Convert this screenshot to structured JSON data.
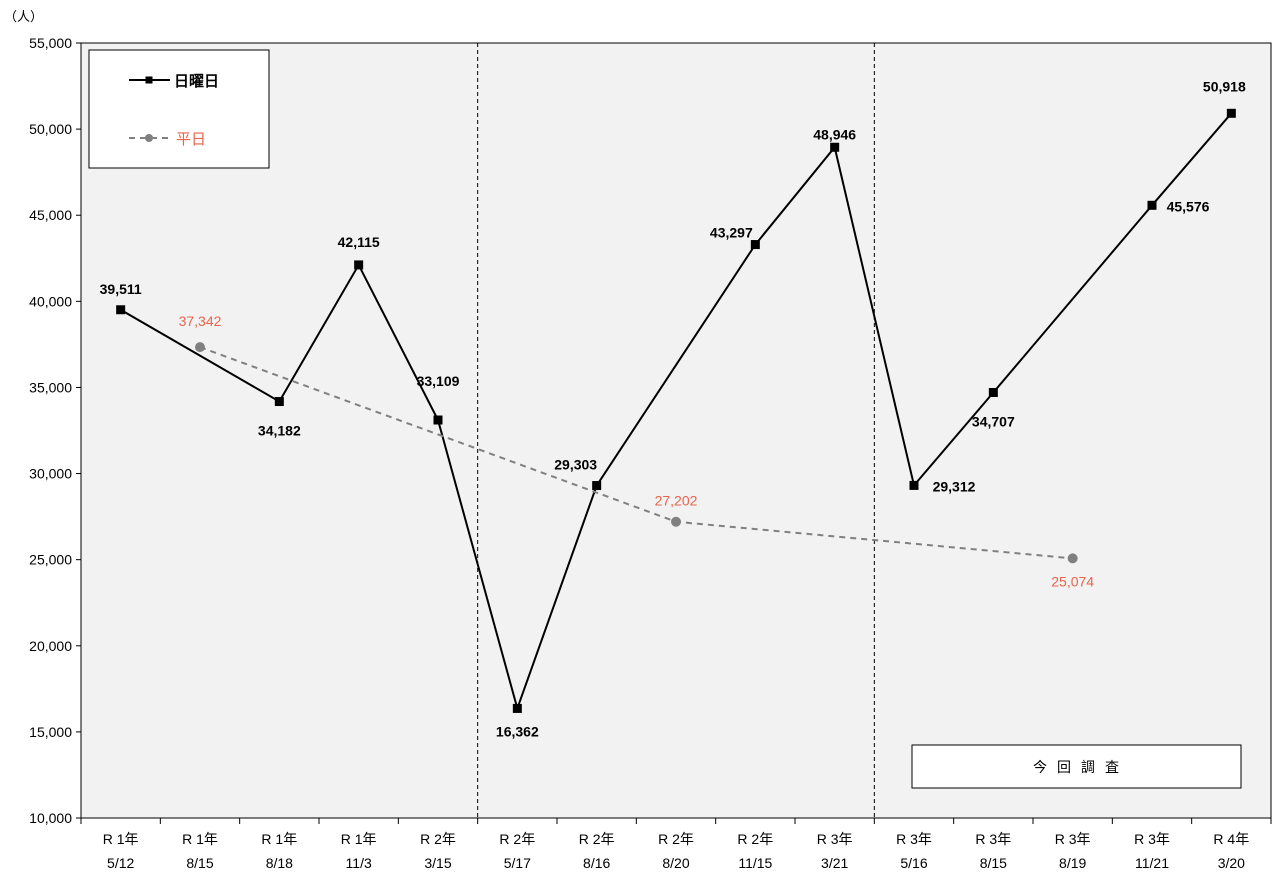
{
  "chart_data": {
    "type": "line",
    "unit_label": "（人）",
    "categories": [
      [
        "R 1年",
        "5/12"
      ],
      [
        "R 1年",
        "8/15"
      ],
      [
        "R 1年",
        "8/18"
      ],
      [
        "R 1年",
        "11/3"
      ],
      [
        "R 2年",
        "3/15"
      ],
      [
        "R 2年",
        "5/17"
      ],
      [
        "R 2年",
        "8/16"
      ],
      [
        "R 2年",
        "8/20"
      ],
      [
        "R 2年",
        "11/15"
      ],
      [
        "R 3年",
        "3/21"
      ],
      [
        "R 3年",
        "5/16"
      ],
      [
        "R 3年",
        "8/15"
      ],
      [
        "R 3年",
        "8/19"
      ],
      [
        "R 3年",
        "11/21"
      ],
      [
        "R 4年",
        "3/20"
      ]
    ],
    "ylim": [
      10000,
      55000
    ],
    "yticks": [
      10000,
      15000,
      20000,
      25000,
      30000,
      35000,
      40000,
      45000,
      50000,
      55000
    ],
    "ytick_labels": [
      "10,000",
      "15,000",
      "20,000",
      "25,000",
      "30,000",
      "35,000",
      "40,000",
      "45,000",
      "50,000",
      "55,000"
    ],
    "series": [
      {
        "name": "日曜日",
        "color": "#000000",
        "marker": "square",
        "points": [
          {
            "i": 0,
            "value": 39511,
            "label": "39,511"
          },
          {
            "i": 2,
            "value": 34182,
            "label": "34,182"
          },
          {
            "i": 3,
            "value": 42115,
            "label": "42,115"
          },
          {
            "i": 4,
            "value": 33109,
            "label": "33,109"
          },
          {
            "i": 5,
            "value": 16362,
            "label": "16,362"
          },
          {
            "i": 6,
            "value": 29303,
            "label": "29,303"
          },
          {
            "i": 8,
            "value": 43297,
            "label": "43,297"
          },
          {
            "i": 9,
            "value": 48946,
            "label": "48,946"
          },
          {
            "i": 10,
            "value": 29312,
            "label": "29,312"
          },
          {
            "i": 11,
            "value": 34707,
            "label": "34,707"
          },
          {
            "i": 13,
            "value": 45576,
            "label": "45,576"
          },
          {
            "i": 14,
            "value": 50918,
            "label": "50,918"
          }
        ]
      },
      {
        "name": "平日",
        "color": "#808080",
        "label_color": "#e8644c",
        "marker": "circle",
        "dashed": true,
        "points": [
          {
            "i": 1,
            "value": 37342,
            "label": "37,342"
          },
          {
            "i": 7,
            "value": 27202,
            "label": "27,202"
          },
          {
            "i": 12,
            "value": 25074,
            "label": "25,074"
          }
        ]
      }
    ],
    "section_dividers_after": [
      4,
      9
    ],
    "annotation": "今回調査",
    "legend_position": "top-left",
    "background": "#f2f2f2"
  }
}
